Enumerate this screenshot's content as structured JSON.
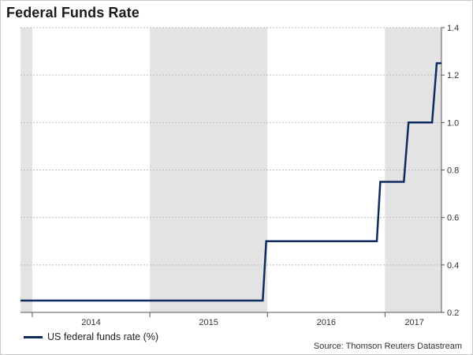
{
  "title": "Federal Funds Rate",
  "source": "Source: Thomson Reuters Datastream",
  "colors": {
    "line": "#0d2b5c",
    "shade": "#e3e3e3",
    "grid": "#bdbdbd",
    "axis": "#555555"
  },
  "chart_data": {
    "type": "line",
    "title": "Federal Funds Rate",
    "xlabel": "",
    "ylabel": "",
    "x_range": [
      2013.9,
      2017.48
    ],
    "ylim": [
      0.2,
      1.4
    ],
    "y_ticks": [
      0.2,
      0.4,
      0.6,
      0.8,
      1.0,
      1.2,
      1.4
    ],
    "y_tick_labels": [
      "0.2",
      "0.4",
      "0.6",
      "0.8",
      "1.0",
      "1.2",
      "1.4"
    ],
    "x_tick_labels": [
      "2014",
      "2015",
      "2016",
      "2017"
    ],
    "x_label_positions": [
      2014.5,
      2015.5,
      2016.5,
      2017.25
    ],
    "year_boundaries": [
      2014,
      2015,
      2016,
      2017
    ],
    "shaded_regions": [
      [
        2013.9,
        2014.0
      ],
      [
        2015.0,
        2016.0
      ],
      [
        2017.0,
        2017.48
      ]
    ],
    "grid": "horizontal-dashed",
    "legend_position": "bottom-left",
    "series": [
      {
        "name": "US federal funds rate (%)",
        "step": true,
        "points": [
          [
            2013.9,
            0.25
          ],
          [
            2015.96,
            0.25
          ],
          [
            2015.99,
            0.5
          ],
          [
            2016.93,
            0.5
          ],
          [
            2016.96,
            0.75
          ],
          [
            2017.16,
            0.75
          ],
          [
            2017.2,
            1.0
          ],
          [
            2017.4,
            1.0
          ],
          [
            2017.44,
            1.25
          ],
          [
            2017.48,
            1.25
          ]
        ]
      }
    ]
  }
}
